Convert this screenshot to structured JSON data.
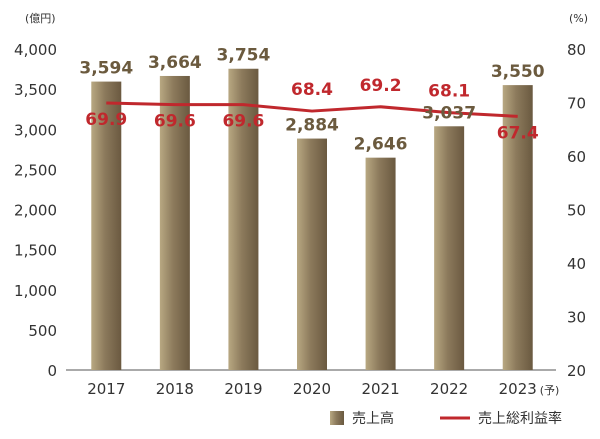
{
  "chart_data": {
    "type": "bar",
    "categories": [
      "2017",
      "2018",
      "2019",
      "2020",
      "2021",
      "2022",
      "2023"
    ],
    "category_suffix": {
      "2023": "(予)"
    },
    "series": [
      {
        "name": "売上高",
        "type": "bar",
        "axis": "left",
        "values": [
          3594,
          3664,
          3754,
          2884,
          2646,
          3037,
          3550
        ]
      },
      {
        "name": "売上総利益率",
        "type": "line",
        "axis": "right",
        "values": [
          69.9,
          69.6,
          69.6,
          68.4,
          69.2,
          68.1,
          67.4
        ]
      }
    ],
    "bar_labels": [
      "3,594",
      "3,664",
      "3,754",
      "2,884",
      "2,646",
      "3,037",
      "3,550"
    ],
    "line_labels": [
      "69.9",
      "69.6",
      "69.6",
      "68.4",
      "69.2",
      "68.1",
      "67.4"
    ],
    "left_axis": {
      "unit": "(億円)",
      "min": 0,
      "max": 4000,
      "ticks": [
        "0",
        "500",
        "1,000",
        "1,500",
        "2,000",
        "2,500",
        "3,000",
        "3,500",
        "4,000"
      ]
    },
    "right_axis": {
      "unit": "(%)",
      "min": 20,
      "max": 80,
      "ticks": [
        "20",
        "30",
        "40",
        "50",
        "60",
        "70",
        "80"
      ]
    },
    "grid": false,
    "legend_position": "bottom-right",
    "colors": {
      "bar": "#8c7a5c",
      "bar_label": "#6b5a3e",
      "line": "#c0282d",
      "line_label": "#c0282d",
      "axis": "#555555",
      "text": "#333333"
    }
  }
}
